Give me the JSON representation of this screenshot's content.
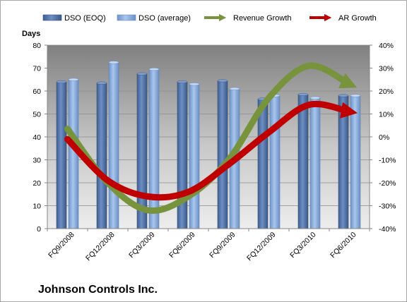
{
  "company": "Johnson Controls Inc.",
  "chart_data": {
    "type": "bar",
    "categories": [
      "FQ9/2008",
      "FQ12/2008",
      "FQ3/2009",
      "FQ6/2009",
      "FQ9/2009",
      "FQ12/2009",
      "FQ3/2010",
      "FQ6/2010"
    ],
    "series": [
      {
        "name": "DSO (EOQ)",
        "type": "bar",
        "axis": "left",
        "color": "#5b7db3",
        "values": [
          64,
          63.5,
          67.5,
          64,
          64.5,
          56.5,
          58.5,
          58
        ]
      },
      {
        "name": "DSO (average)",
        "type": "bar",
        "axis": "left",
        "color": "#8fb1e0",
        "values": [
          65,
          72.5,
          69.5,
          63,
          61,
          58,
          57,
          58
        ]
      },
      {
        "name": "Revenue Growth",
        "type": "line",
        "axis": "right",
        "unit": "percent",
        "color": "#77933c",
        "values": [
          3.5,
          -20,
          -32,
          -26,
          -10,
          17,
          31,
          23
        ]
      },
      {
        "name": "AR Growth",
        "type": "line",
        "axis": "right",
        "unit": "percent",
        "color": "#c00000",
        "values": [
          -1,
          -19,
          -26,
          -24,
          -12,
          2,
          14,
          11
        ]
      }
    ],
    "y_left": {
      "label": "Days",
      "min": 0,
      "max": 80,
      "step": 10,
      "ticks": [
        "0",
        "10",
        "20",
        "30",
        "40",
        "50",
        "60",
        "70",
        "80"
      ]
    },
    "y_right": {
      "min": -40,
      "max": 40,
      "step": 10,
      "ticks": [
        "-40%",
        "-30%",
        "-20%",
        "-10%",
        "0%",
        "10%",
        "20%",
        "30%",
        "40%"
      ]
    },
    "grid": true,
    "legend_position": "top",
    "colors": {
      "plot_top": "#808080",
      "plot_bottom": "#ededed"
    }
  }
}
